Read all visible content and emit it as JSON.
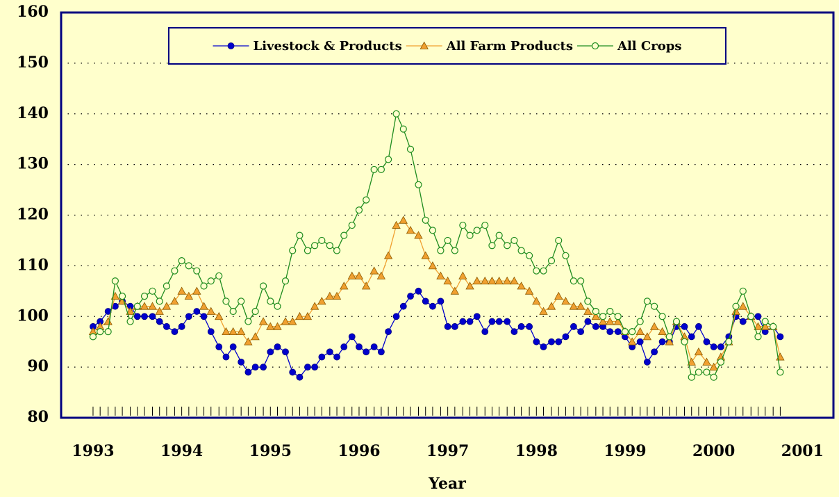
{
  "chart_data": {
    "type": "line",
    "x_label": "Year",
    "x": [
      1993,
      1993.08,
      1993.17,
      1993.25,
      1993.33,
      1993.42,
      1993.5,
      1993.58,
      1993.67,
      1993.75,
      1993.83,
      1993.92,
      1994,
      1994.08,
      1994.17,
      1994.25,
      1994.33,
      1994.42,
      1994.5,
      1994.58,
      1994.67,
      1994.75,
      1994.83,
      1994.92,
      1995,
      1995.08,
      1995.17,
      1995.25,
      1995.33,
      1995.42,
      1995.5,
      1995.58,
      1995.67,
      1995.75,
      1995.83,
      1995.92,
      1996,
      1996.08,
      1996.17,
      1996.25,
      1996.33,
      1996.42,
      1996.5,
      1996.58,
      1996.67,
      1996.75,
      1996.83,
      1996.92,
      1997,
      1997.08,
      1997.17,
      1997.25,
      1997.33,
      1997.42,
      1997.5,
      1997.58,
      1997.67,
      1997.75,
      1997.83,
      1997.92,
      1998,
      1998.08,
      1998.17,
      1998.25,
      1998.33,
      1998.42,
      1998.5,
      1998.58,
      1998.67,
      1998.75,
      1998.83,
      1998.92,
      1999,
      1999.08,
      1999.17,
      1999.25,
      1999.33,
      1999.42,
      1999.5,
      1999.58,
      1999.67,
      1999.75,
      1999.83,
      1999.92,
      2000,
      2000.08,
      2000.17,
      2000.25,
      2000.33,
      2000.42,
      2000.5,
      2000.58,
      2000.67,
      2000.75
    ],
    "series": [
      {
        "name": "Livestock & Products",
        "color": "#0000cc",
        "marker": "circle",
        "values": [
          98,
          99,
          101,
          102,
          103,
          102,
          100,
          100,
          100,
          99,
          98,
          97,
          98,
          100,
          101,
          100,
          97,
          94,
          92,
          94,
          91,
          89,
          90,
          90,
          93,
          94,
          93,
          89,
          88,
          90,
          90,
          92,
          93,
          92,
          94,
          96,
          94,
          93,
          94,
          93,
          97,
          100,
          102,
          104,
          105,
          103,
          102,
          103,
          98,
          98,
          99,
          99,
          100,
          97,
          99,
          99,
          99,
          97,
          98,
          98,
          95,
          94,
          95,
          95,
          96,
          98,
          97,
          99,
          98,
          98,
          97,
          97,
          96,
          94,
          95,
          91,
          93,
          95,
          95,
          98,
          98,
          96,
          98,
          95,
          94,
          94,
          96,
          100,
          99,
          100,
          100,
          97,
          98,
          96
        ]
      },
      {
        "name": "All Farm Products",
        "color": "#f0a030",
        "marker": "triangle",
        "values": [
          97,
          98,
          99,
          104,
          103,
          101,
          102,
          102,
          102,
          101,
          102,
          103,
          105,
          104,
          105,
          102,
          101,
          100,
          97,
          97,
          97,
          95,
          96,
          99,
          98,
          98,
          99,
          99,
          100,
          100,
          102,
          103,
          104,
          104,
          106,
          108,
          108,
          106,
          109,
          108,
          112,
          118,
          119,
          117,
          116,
          112,
          110,
          108,
          107,
          105,
          108,
          106,
          107,
          107,
          107,
          107,
          107,
          107,
          106,
          105,
          103,
          101,
          102,
          104,
          103,
          102,
          102,
          101,
          100,
          99,
          99,
          99,
          97,
          95,
          97,
          96,
          98,
          97,
          95,
          99,
          96,
          91,
          93,
          91,
          90,
          92,
          95,
          101,
          102,
          100,
          98,
          98,
          98,
          92
        ]
      },
      {
        "name": "All Crops",
        "color": "#1e8c1e",
        "marker": "open-circle",
        "values": [
          96,
          97,
          97,
          107,
          104,
          99,
          102,
          104,
          105,
          103,
          106,
          109,
          111,
          110,
          109,
          106,
          107,
          108,
          103,
          101,
          103,
          99,
          101,
          106,
          103,
          102,
          107,
          113,
          116,
          113,
          114,
          115,
          114,
          113,
          116,
          118,
          121,
          123,
          129,
          129,
          131,
          140,
          137,
          133,
          126,
          119,
          117,
          113,
          115,
          113,
          118,
          116,
          117,
          118,
          114,
          116,
          114,
          115,
          113,
          112,
          109,
          109,
          111,
          115,
          112,
          107,
          107,
          103,
          101,
          100,
          101,
          100,
          97,
          97,
          99,
          103,
          102,
          100,
          96,
          99,
          95,
          88,
          89,
          89,
          88,
          91,
          95,
          102,
          105,
          100,
          96,
          99,
          98,
          89
        ]
      }
    ],
    "xlim": [
      1992.64,
      2001.35
    ],
    "xticks": [
      1993,
      1994,
      1995,
      1996,
      1997,
      1998,
      1999,
      2000,
      2001
    ],
    "ylim": [
      80,
      160
    ],
    "yticks": [
      80,
      90,
      100,
      110,
      120,
      130,
      140,
      150,
      160
    ],
    "grid": true,
    "legend": "top"
  }
}
